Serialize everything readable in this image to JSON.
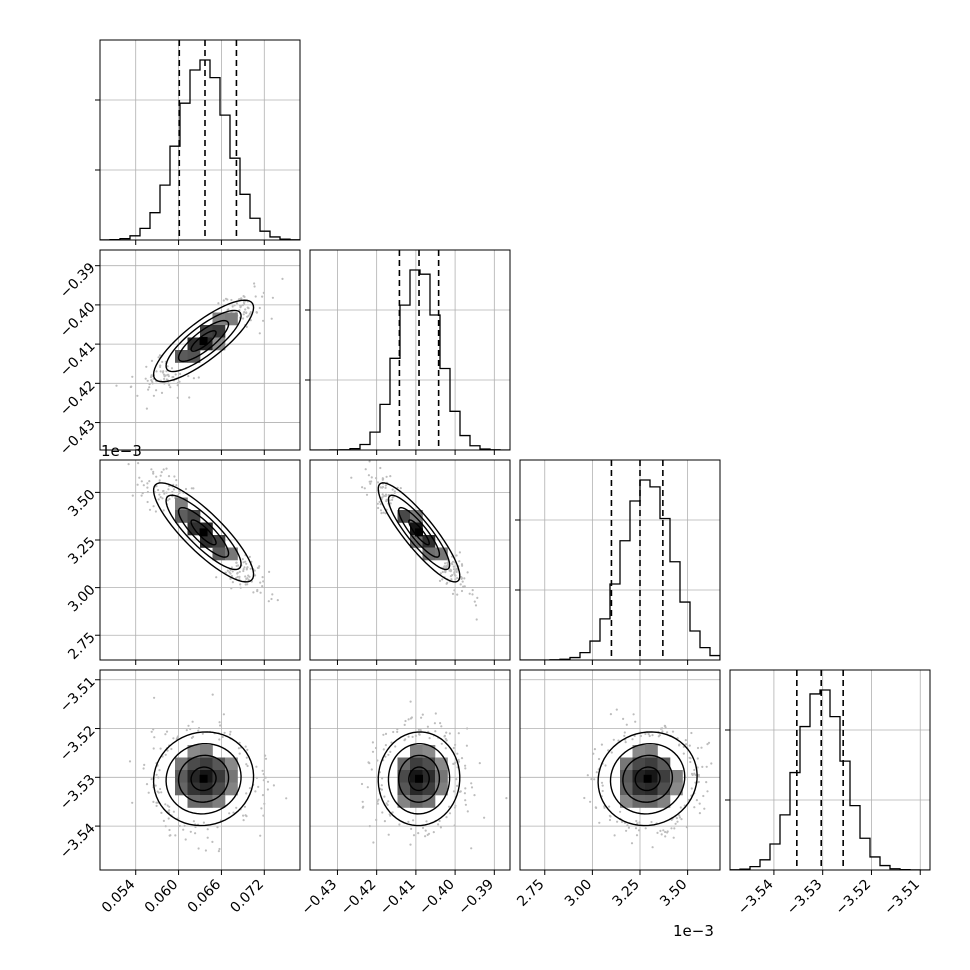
{
  "figure": {
    "type": "corner-plot",
    "exponent_labels": {
      "row_3_y": "1e−3",
      "col_3_x": "1e−3"
    }
  },
  "chart_data": {
    "type": "corner",
    "parameters": [
      {
        "range": [
          0.049,
          0.077
        ],
        "ticks": [
          0.054,
          0.06,
          0.066,
          0.072
        ],
        "tick_labels": [
          "0.054",
          "0.060",
          "0.066",
          "0.072"
        ],
        "quantiles": [
          0.0601,
          0.0637,
          0.0681
        ],
        "mode": 0.0635,
        "sigma": 0.0035
      },
      {
        "range": [
          -0.437,
          -0.386
        ],
        "ticks": [
          -0.43,
          -0.42,
          -0.41,
          -0.4,
          -0.39
        ],
        "tick_labels": [
          "−0.43",
          "−0.42",
          "−0.41",
          "−0.40",
          "−0.39"
        ],
        "quantiles": [
          -0.4142,
          -0.4092,
          -0.4042
        ],
        "mode": -0.4092,
        "sigma": 0.0052
      },
      {
        "range": [
          2.62,
          3.67
        ],
        "ticks": [
          2.75,
          3.0,
          3.25,
          3.5
        ],
        "tick_labels": [
          "2.75",
          "3.00",
          "3.25",
          "3.50"
        ],
        "quantiles": [
          3.1,
          3.25,
          3.37
        ],
        "mode": 3.29,
        "sigma": 0.13
      },
      {
        "range": [
          -3.549,
          -3.508
        ],
        "ticks": [
          -3.54,
          -3.53,
          -3.52,
          -3.51
        ],
        "tick_labels": [
          "−3.54",
          "−3.53",
          "−3.52",
          "−3.51"
        ],
        "quantiles": [
          -3.5353,
          -3.5303,
          -3.5258
        ],
        "mode": -3.5303,
        "sigma": 0.0048
      }
    ],
    "correlations": [
      {
        "i": 1,
        "j": 0,
        "rho": 0.82
      },
      {
        "i": 2,
        "j": 0,
        "rho": -0.85
      },
      {
        "i": 2,
        "j": 1,
        "rho": -0.88
      },
      {
        "i": 3,
        "j": 0,
        "rho": 0.05
      },
      {
        "i": 3,
        "j": 1,
        "rho": 0.02
      },
      {
        "i": 3,
        "j": 2,
        "rho": 0.06
      }
    ],
    "histogram_bins": 20,
    "quantile_levels": [
      0.16,
      0.5,
      0.84
    ],
    "contour_levels_sigma": [
      0.5,
      1.0,
      1.5,
      2.0
    ],
    "grid": true,
    "quantile_line_style": "dashed",
    "colors": {
      "line": "#000000",
      "scatter": "#bdbdbd",
      "grid": "#b0b0b0"
    }
  }
}
